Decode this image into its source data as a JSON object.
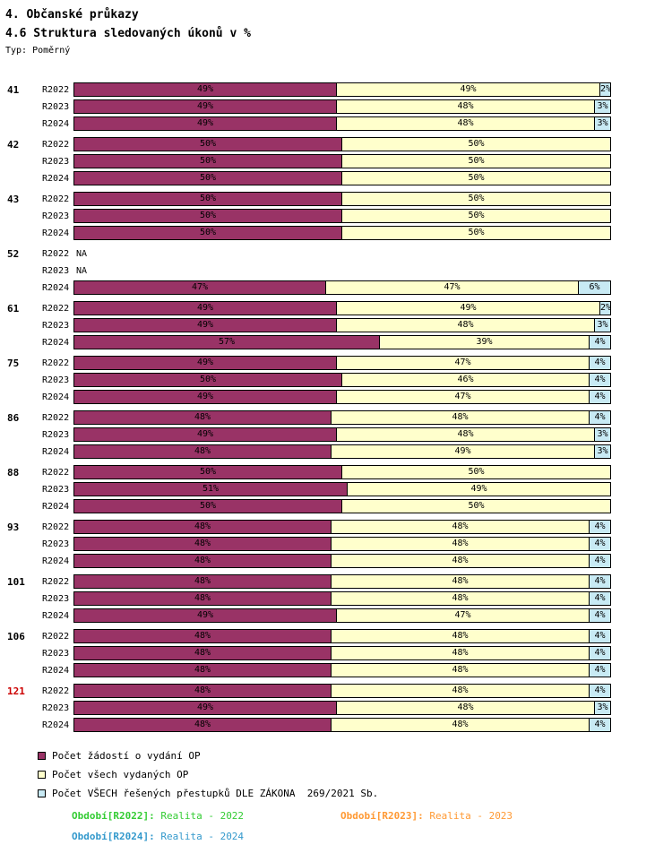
{
  "title": "4. Občanské průkazy",
  "subtitle": "4.6 Struktura sledovaných úkonů v %",
  "type_label": "Typ: Poměrný",
  "na_label": "NA",
  "colors": {
    "applications": "#993366",
    "issued": "#FFFFCC",
    "offenses": "#C8EAF4",
    "highlight_group": "#CC0000"
  },
  "chart_data": {
    "type": "bar",
    "orientation": "horizontal",
    "stacked": true,
    "unit": "%",
    "xlim": [
      0,
      100
    ],
    "series_names": [
      "Počet žádostí o vydání OP",
      "Počet všech vydaných OP",
      "Počet VŠECH řešených přestupků DLE ZÁKONA  269/2021 Sb."
    ],
    "groups": [
      {
        "id": "41",
        "highlight": false,
        "rows": [
          {
            "period": "R2022",
            "values": [
              49,
              49,
              2
            ]
          },
          {
            "period": "R2023",
            "values": [
              49,
              48,
              3
            ]
          },
          {
            "period": "R2024",
            "values": [
              49,
              48,
              3
            ]
          }
        ]
      },
      {
        "id": "42",
        "highlight": false,
        "rows": [
          {
            "period": "R2022",
            "values": [
              50,
              50
            ]
          },
          {
            "period": "R2023",
            "values": [
              50,
              50
            ]
          },
          {
            "period": "R2024",
            "values": [
              50,
              50
            ]
          }
        ]
      },
      {
        "id": "43",
        "highlight": false,
        "rows": [
          {
            "period": "R2022",
            "values": [
              50,
              50
            ]
          },
          {
            "period": "R2023",
            "values": [
              50,
              50
            ]
          },
          {
            "period": "R2024",
            "values": [
              50,
              50
            ]
          }
        ]
      },
      {
        "id": "52",
        "highlight": false,
        "rows": [
          {
            "period": "R2022",
            "values": null
          },
          {
            "period": "R2023",
            "values": null
          },
          {
            "period": "R2024",
            "values": [
              47,
              47,
              6
            ]
          }
        ]
      },
      {
        "id": "61",
        "highlight": false,
        "rows": [
          {
            "period": "R2022",
            "values": [
              49,
              49,
              2
            ]
          },
          {
            "period": "R2023",
            "values": [
              49,
              48,
              3
            ]
          },
          {
            "period": "R2024",
            "values": [
              57,
              39,
              4
            ]
          }
        ]
      },
      {
        "id": "75",
        "highlight": false,
        "rows": [
          {
            "period": "R2022",
            "values": [
              49,
              47,
              4
            ]
          },
          {
            "period": "R2023",
            "values": [
              50,
              46,
              4
            ]
          },
          {
            "period": "R2024",
            "values": [
              49,
              47,
              4
            ]
          }
        ]
      },
      {
        "id": "86",
        "highlight": false,
        "rows": [
          {
            "period": "R2022",
            "values": [
              48,
              48,
              4
            ]
          },
          {
            "period": "R2023",
            "values": [
              49,
              48,
              3
            ]
          },
          {
            "period": "R2024",
            "values": [
              48,
              49,
              3
            ]
          }
        ]
      },
      {
        "id": "88",
        "highlight": false,
        "rows": [
          {
            "period": "R2022",
            "values": [
              50,
              50
            ]
          },
          {
            "period": "R2023",
            "values": [
              51,
              49
            ]
          },
          {
            "period": "R2024",
            "values": [
              50,
              50
            ]
          }
        ]
      },
      {
        "id": "93",
        "highlight": false,
        "rows": [
          {
            "period": "R2022",
            "values": [
              48,
              48,
              4
            ]
          },
          {
            "period": "R2023",
            "values": [
              48,
              48,
              4
            ]
          },
          {
            "period": "R2024",
            "values": [
              48,
              48,
              4
            ]
          }
        ]
      },
      {
        "id": "101",
        "highlight": false,
        "rows": [
          {
            "period": "R2022",
            "values": [
              48,
              48,
              4
            ]
          },
          {
            "period": "R2023",
            "values": [
              48,
              48,
              4
            ]
          },
          {
            "period": "R2024",
            "values": [
              49,
              47,
              4
            ]
          }
        ]
      },
      {
        "id": "106",
        "highlight": false,
        "rows": [
          {
            "period": "R2022",
            "values": [
              48,
              48,
              4
            ]
          },
          {
            "period": "R2023",
            "values": [
              48,
              48,
              4
            ]
          },
          {
            "period": "R2024",
            "values": [
              48,
              48,
              4
            ]
          }
        ]
      },
      {
        "id": "121",
        "highlight": true,
        "rows": [
          {
            "period": "R2022",
            "values": [
              48,
              48,
              4
            ]
          },
          {
            "period": "R2023",
            "values": [
              49,
              48,
              3
            ]
          },
          {
            "period": "R2024",
            "values": [
              48,
              48,
              4
            ]
          }
        ]
      }
    ]
  },
  "legend": [
    {
      "label": "Počet žádostí o vydání OP",
      "color": "#993366"
    },
    {
      "label": "Počet všech vydaných OP",
      "color": "#FFFFCC"
    },
    {
      "label": "Počet VŠECH řešených přestupků DLE ZÁKONA  269/2021 Sb.",
      "color": "#C8EAF4"
    }
  ],
  "periods": [
    {
      "label": "Období[R2022]:",
      "value": "Realita - 2022",
      "color": "#33CC33"
    },
    {
      "label": "Období[R2023]:",
      "value": "Realita - 2023",
      "color": "#FF9933"
    },
    {
      "label": "Období[R2024]:",
      "value": "Realita - 2024",
      "color": "#3399CC"
    }
  ]
}
